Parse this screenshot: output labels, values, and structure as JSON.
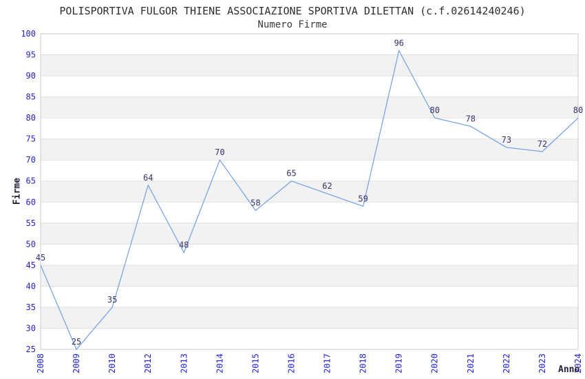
{
  "chart_data": {
    "type": "line",
    "title": "POLISPORTIVA FULGOR THIENE ASSOCIAZIONE SPORTIVA DILETTAN (c.f.02614240246)",
    "subtitle": "Numero Firme",
    "xlabel": "Anno",
    "ylabel": "Firme",
    "categories": [
      "2008",
      "2009",
      "2010",
      "2012",
      "2013",
      "2014",
      "2015",
      "2016",
      "2017",
      "2018",
      "2019",
      "2020",
      "2021",
      "2022",
      "2023",
      "2024"
    ],
    "series": [
      {
        "name": "Numero Firme",
        "values": [
          45,
          25,
          35,
          64,
          48,
          70,
          58,
          65,
          62,
          59,
          96,
          80,
          78,
          73,
          72,
          80
        ]
      }
    ],
    "ylim": [
      25,
      100
    ],
    "ytick_step": 5,
    "yticks": [
      25,
      30,
      35,
      40,
      45,
      50,
      55,
      60,
      65,
      70,
      75,
      80,
      85,
      90,
      95,
      100
    ],
    "point_labels_shown": true,
    "legend": "none",
    "grid": "horizontal-bands",
    "x_tick_rotation": "vertical-bottom-to-top",
    "colors": {
      "line": "#6e9fe6",
      "tick_label": "#2323cf",
      "data_label": "#333366",
      "axis_title": "#20203a",
      "title_text": "#2e2e2e",
      "band_gray": "#f2f2f2",
      "band_white": "#ffffff",
      "gridline": "#e0e0e0",
      "plot_border": "#c9c9c9",
      "background": "#ffffff"
    }
  }
}
